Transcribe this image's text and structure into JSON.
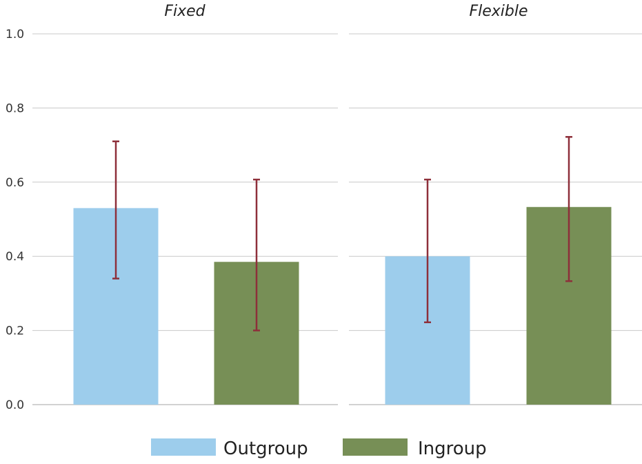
{
  "chart_data": {
    "type": "bar",
    "ylim": [
      0,
      1
    ],
    "yticks": [
      "0.0",
      "0.2",
      "0.4",
      "0.6",
      "0.8",
      "1.0"
    ],
    "grid": true,
    "legend_placement": "bottom",
    "colors": {
      "Outgroup": "#9dcdec",
      "Ingroup": "#778f56",
      "error_bar": "#8e2f3a"
    },
    "series_names": [
      "Outgroup",
      "Ingroup"
    ],
    "panels": [
      {
        "title": "Fixed",
        "bars": [
          {
            "series": "Outgroup",
            "value": 0.53,
            "err_low": 0.34,
            "err_high": 0.71
          },
          {
            "series": "Ingroup",
            "value": 0.385,
            "err_low": 0.2,
            "err_high": 0.607
          }
        ]
      },
      {
        "title": "Flexible",
        "bars": [
          {
            "series": "Outgroup",
            "value": 0.4,
            "err_low": 0.222,
            "err_high": 0.607
          },
          {
            "series": "Ingroup",
            "value": 0.533,
            "err_low": 0.333,
            "err_high": 0.722
          }
        ]
      }
    ]
  }
}
